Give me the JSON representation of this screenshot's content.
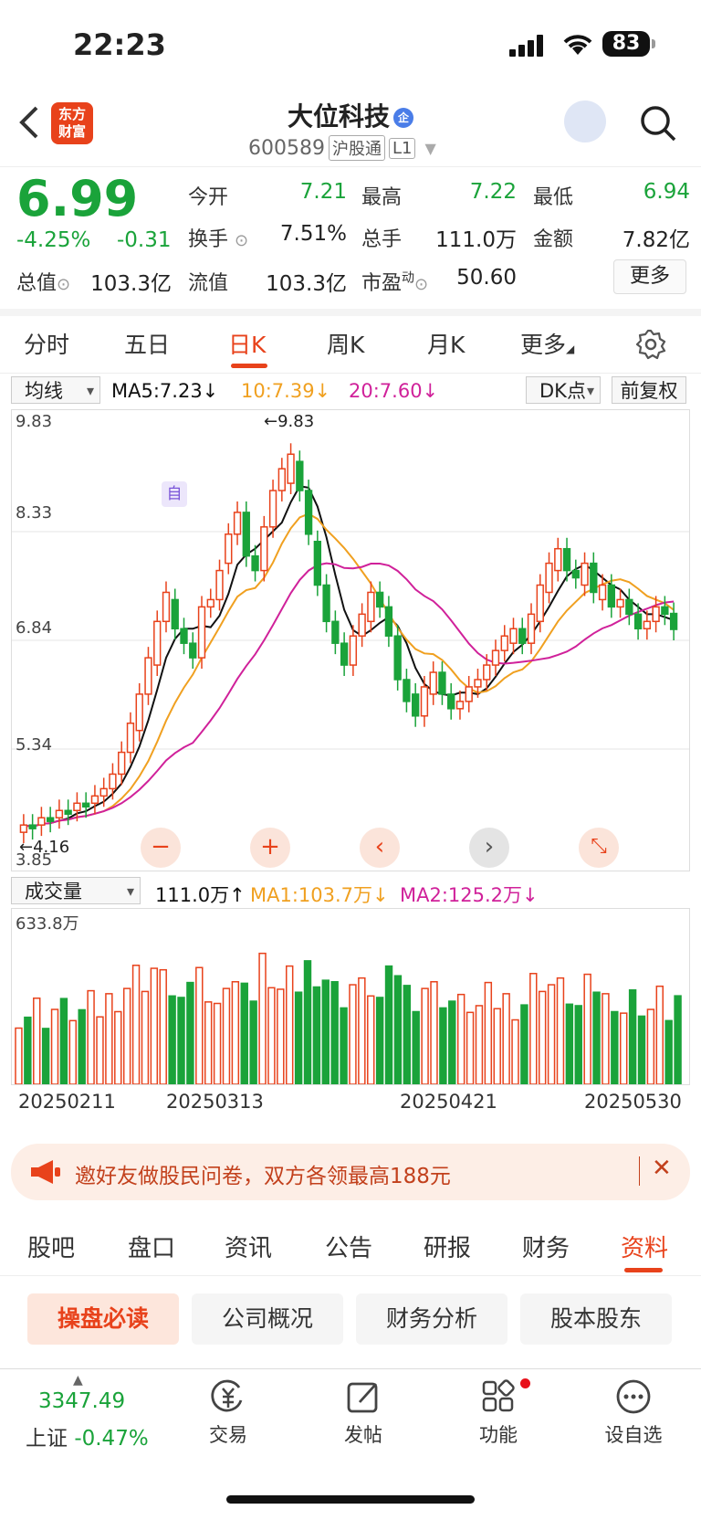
{
  "status": {
    "time": "22:23",
    "battery": "83"
  },
  "header": {
    "logo_line1": "东方",
    "logo_line2": "财富",
    "name": "大位科技",
    "badge": "企",
    "code": "600589",
    "market_tag": "沪股通",
    "level_tag": "L1"
  },
  "quote": {
    "price": "6.99",
    "change_pct": "-4.25%",
    "change_amt": "-0.31",
    "open_label": "今开",
    "open": "7.21",
    "high_label": "最高",
    "high": "7.22",
    "low_label": "最低",
    "low": "6.94",
    "turnover_label": "换手",
    "turnover": "7.51%",
    "volume_label": "总手",
    "volume": "111.0万",
    "amount_label": "金额",
    "amount": "7.82亿",
    "mktcap_label": "总值",
    "mktcap": "103.3亿",
    "float_label": "流值",
    "float": "103.3亿",
    "pe_label": "市盈",
    "pe_sup": "动",
    "pe": "50.60",
    "more": "更多"
  },
  "tabs": [
    "分时",
    "五日",
    "日K",
    "周K",
    "月K",
    "更多"
  ],
  "ma": {
    "selector": "均线",
    "ma5": "MA5:7.23↓",
    "ma10": "10:7.39↓",
    "ma20": "20:7.60↓",
    "dk": "DK点",
    "adjust": "前复权"
  },
  "kchart": {
    "y_labels": [
      "9.83",
      "8.33",
      "6.84",
      "5.34",
      "3.85"
    ],
    "max_label": "←9.83",
    "min_label": "←4.16",
    "zi": "自"
  },
  "volume": {
    "selector": "成交量",
    "vol": "111.0万↑",
    "ma1": "MA1:103.7万↓",
    "ma2": "MA2:125.2万↓",
    "max_label": "633.8万"
  },
  "dates": [
    "20250211",
    "20250313",
    "20250421",
    "20250530"
  ],
  "banner": {
    "text": "邀好友做股民问卷，双方各领最高188元"
  },
  "bottom_tabs": [
    "股吧",
    "盘口",
    "资讯",
    "公告",
    "研报",
    "财务",
    "资料"
  ],
  "chips": [
    "操盘必读",
    "公司概况",
    "财务分析",
    "股本股东"
  ],
  "bottom_nav": {
    "index_value": "3347.49",
    "index_name": "上证",
    "index_chg": "-0.47%",
    "items": [
      "交易",
      "发帖",
      "功能",
      "设自选"
    ]
  },
  "colors": {
    "up": "#e8421b",
    "down": "#1aa33a",
    "ma5": "#111111",
    "ma10": "#f0a020",
    "ma20": "#d0219a"
  },
  "chart_data": {
    "type": "candlestick",
    "y_range": [
      3.85,
      9.83
    ],
    "closes": [
      4.3,
      4.25,
      4.4,
      4.35,
      4.5,
      4.45,
      4.6,
      4.55,
      4.7,
      4.8,
      5.0,
      5.3,
      5.7,
      6.1,
      6.6,
      7.1,
      7.5,
      7.0,
      6.8,
      6.6,
      7.3,
      7.4,
      7.8,
      8.3,
      8.6,
      8.0,
      7.8,
      8.4,
      8.9,
      9.2,
      9.4,
      8.9,
      8.3,
      7.6,
      7.1,
      6.8,
      6.5,
      6.9,
      7.2,
      7.5,
      7.3,
      6.9,
      6.3,
      6.0,
      5.8,
      6.2,
      6.4,
      6.1,
      5.9,
      6.0,
      6.2,
      6.3,
      6.5,
      6.7,
      6.9,
      7.0,
      6.8,
      7.2,
      7.6,
      7.9,
      8.1,
      7.8,
      7.7,
      7.9,
      7.5,
      7.6,
      7.3,
      7.4,
      7.2,
      7.0,
      7.1,
      7.3,
      7.2,
      6.99
    ],
    "opens": [
      4.2,
      4.3,
      4.3,
      4.4,
      4.4,
      4.5,
      4.5,
      4.6,
      4.6,
      4.7,
      4.8,
      5.0,
      5.3,
      5.6,
      6.1,
      6.5,
      7.1,
      7.4,
      7.0,
      6.8,
      6.6,
      7.3,
      7.4,
      7.9,
      8.3,
      8.6,
      8.0,
      7.8,
      8.4,
      8.9,
      9.0,
      9.3,
      8.9,
      8.2,
      7.6,
      7.1,
      6.8,
      6.5,
      6.9,
      7.1,
      7.5,
      7.3,
      6.9,
      6.3,
      6.1,
      5.8,
      6.1,
      6.4,
      6.1,
      5.9,
      6.0,
      6.2,
      6.3,
      6.5,
      6.7,
      6.8,
      7.0,
      6.8,
      7.1,
      7.5,
      7.8,
      8.1,
      7.8,
      7.6,
      7.9,
      7.4,
      7.6,
      7.3,
      7.4,
      7.2,
      7.0,
      7.1,
      7.3,
      7.21
    ]
  }
}
